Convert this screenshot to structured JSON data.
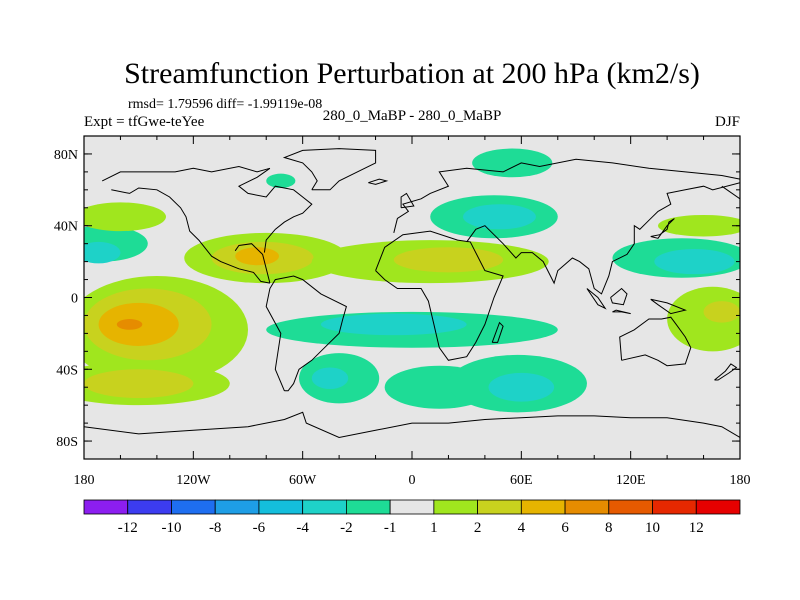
{
  "chart_data": {
    "type": "heatmap",
    "title": "Streamfunction Perturbation at 200 hPa (km2/s)",
    "stats": "rmsd= 1.79596 diff= -1.99119e-08",
    "left_label": "Expt = tfGwe-teYee",
    "center_label": "280_0_MaBP - 280_0_MaBP",
    "right_label": "DJF",
    "xlim": [
      -180,
      180
    ],
    "ylim": [
      -90,
      90
    ],
    "x_ticks": [
      {
        "value": -180,
        "label": "180"
      },
      {
        "value": -120,
        "label": "120W"
      },
      {
        "value": -60,
        "label": "60W"
      },
      {
        "value": 0,
        "label": "0"
      },
      {
        "value": 60,
        "label": "60E"
      },
      {
        "value": 120,
        "label": "120E"
      },
      {
        "value": 180,
        "label": "180"
      }
    ],
    "y_ticks": [
      {
        "value": 80,
        "label": "80N"
      },
      {
        "value": 40,
        "label": "40N"
      },
      {
        "value": 0,
        "label": "0"
      },
      {
        "value": -40,
        "label": "40S"
      },
      {
        "value": -80,
        "label": "80S"
      }
    ],
    "colorbar": {
      "labels": [
        "-12",
        "-10",
        "-8",
        "-6",
        "-4",
        "-2",
        "-1",
        "1",
        "2",
        "4",
        "6",
        "8",
        "10",
        "12"
      ],
      "colors": [
        "#8c1ef0",
        "#3c3cf0",
        "#1e6ef0",
        "#1e9ee6",
        "#14bedc",
        "#1ed2c8",
        "#1edc96",
        "#e6e6e6",
        "#a0e61e",
        "#c8d21e",
        "#e6b400",
        "#e68c00",
        "#e65a00",
        "#e62800",
        "#e60000"
      ]
    },
    "regions": [
      {
        "lon": 0,
        "lat": -18,
        "rlon": 80,
        "rlat": 10,
        "color": "#1edc96"
      },
      {
        "lon": -10,
        "lat": -15,
        "rlon": 40,
        "rlat": 6,
        "color": "#1ed2c8"
      },
      {
        "lon": 15,
        "lat": -50,
        "rlon": 30,
        "rlat": 12,
        "color": "#1edc96"
      },
      {
        "lon": -40,
        "lat": -45,
        "rlon": 22,
        "rlat": 14,
        "color": "#1edc96"
      },
      {
        "lon": -45,
        "lat": -45,
        "rlon": 10,
        "rlat": 6,
        "color": "#1ed2c8"
      },
      {
        "lon": 58,
        "lat": -48,
        "rlon": 38,
        "rlat": 16,
        "color": "#1edc96"
      },
      {
        "lon": 60,
        "lat": -50,
        "rlon": 18,
        "rlat": 8,
        "color": "#1ed2c8"
      },
      {
        "lon": -140,
        "lat": -18,
        "rlon": 50,
        "rlat": 30,
        "color": "#a0e61e"
      },
      {
        "lon": -145,
        "lat": -15,
        "rlon": 35,
        "rlat": 20,
        "color": "#c8d21e"
      },
      {
        "lon": -150,
        "lat": -15,
        "rlon": 22,
        "rlat": 12,
        "color": "#e6b400"
      },
      {
        "lon": -155,
        "lat": -15,
        "rlon": 7,
        "rlat": 3,
        "color": "#e68c00"
      },
      {
        "lon": -150,
        "lat": -48,
        "rlon": 50,
        "rlat": 12,
        "color": "#a0e61e"
      },
      {
        "lon": -150,
        "lat": -48,
        "rlon": 30,
        "rlat": 8,
        "color": "#c8d21e"
      },
      {
        "lon": 165,
        "lat": -12,
        "rlon": 25,
        "rlat": 18,
        "color": "#a0e61e"
      },
      {
        "lon": 170,
        "lat": -8,
        "rlon": 10,
        "rlat": 6,
        "color": "#c8d21e"
      },
      {
        "lon": -80,
        "lat": 22,
        "rlon": 45,
        "rlat": 14,
        "color": "#a0e61e"
      },
      {
        "lon": -82,
        "lat": 22,
        "rlon": 28,
        "rlat": 9,
        "color": "#c8d21e"
      },
      {
        "lon": -85,
        "lat": 23,
        "rlon": 12,
        "rlat": 5,
        "color": "#e6b400"
      },
      {
        "lon": 10,
        "lat": 20,
        "rlon": 65,
        "rlat": 12,
        "color": "#a0e61e"
      },
      {
        "lon": 20,
        "lat": 21,
        "rlon": 30,
        "rlat": 7,
        "color": "#c8d21e"
      },
      {
        "lon": -170,
        "lat": 30,
        "rlon": 25,
        "rlat": 10,
        "color": "#1edc96"
      },
      {
        "lon": -172,
        "lat": 25,
        "rlon": 12,
        "rlat": 6,
        "color": "#1ed2c8"
      },
      {
        "lon": -160,
        "lat": 45,
        "rlon": 25,
        "rlat": 8,
        "color": "#a0e61e"
      },
      {
        "lon": 45,
        "lat": 45,
        "rlon": 35,
        "rlat": 12,
        "color": "#1edc96"
      },
      {
        "lon": 48,
        "lat": 45,
        "rlon": 20,
        "rlat": 7,
        "color": "#1ed2c8"
      },
      {
        "lon": 55,
        "lat": 75,
        "rlon": 22,
        "rlat": 8,
        "color": "#1edc96"
      },
      {
        "lon": -72,
        "lat": 65,
        "rlon": 8,
        "rlat": 4,
        "color": "#1edc96"
      },
      {
        "lon": 148,
        "lat": 22,
        "rlon": 38,
        "rlat": 11,
        "color": "#1edc96"
      },
      {
        "lon": 155,
        "lat": 20,
        "rlon": 22,
        "rlat": 7,
        "color": "#1ed2c8"
      },
      {
        "lon": 160,
        "lat": 40,
        "rlon": 25,
        "rlat": 6,
        "color": "#a0e61e"
      }
    ]
  }
}
